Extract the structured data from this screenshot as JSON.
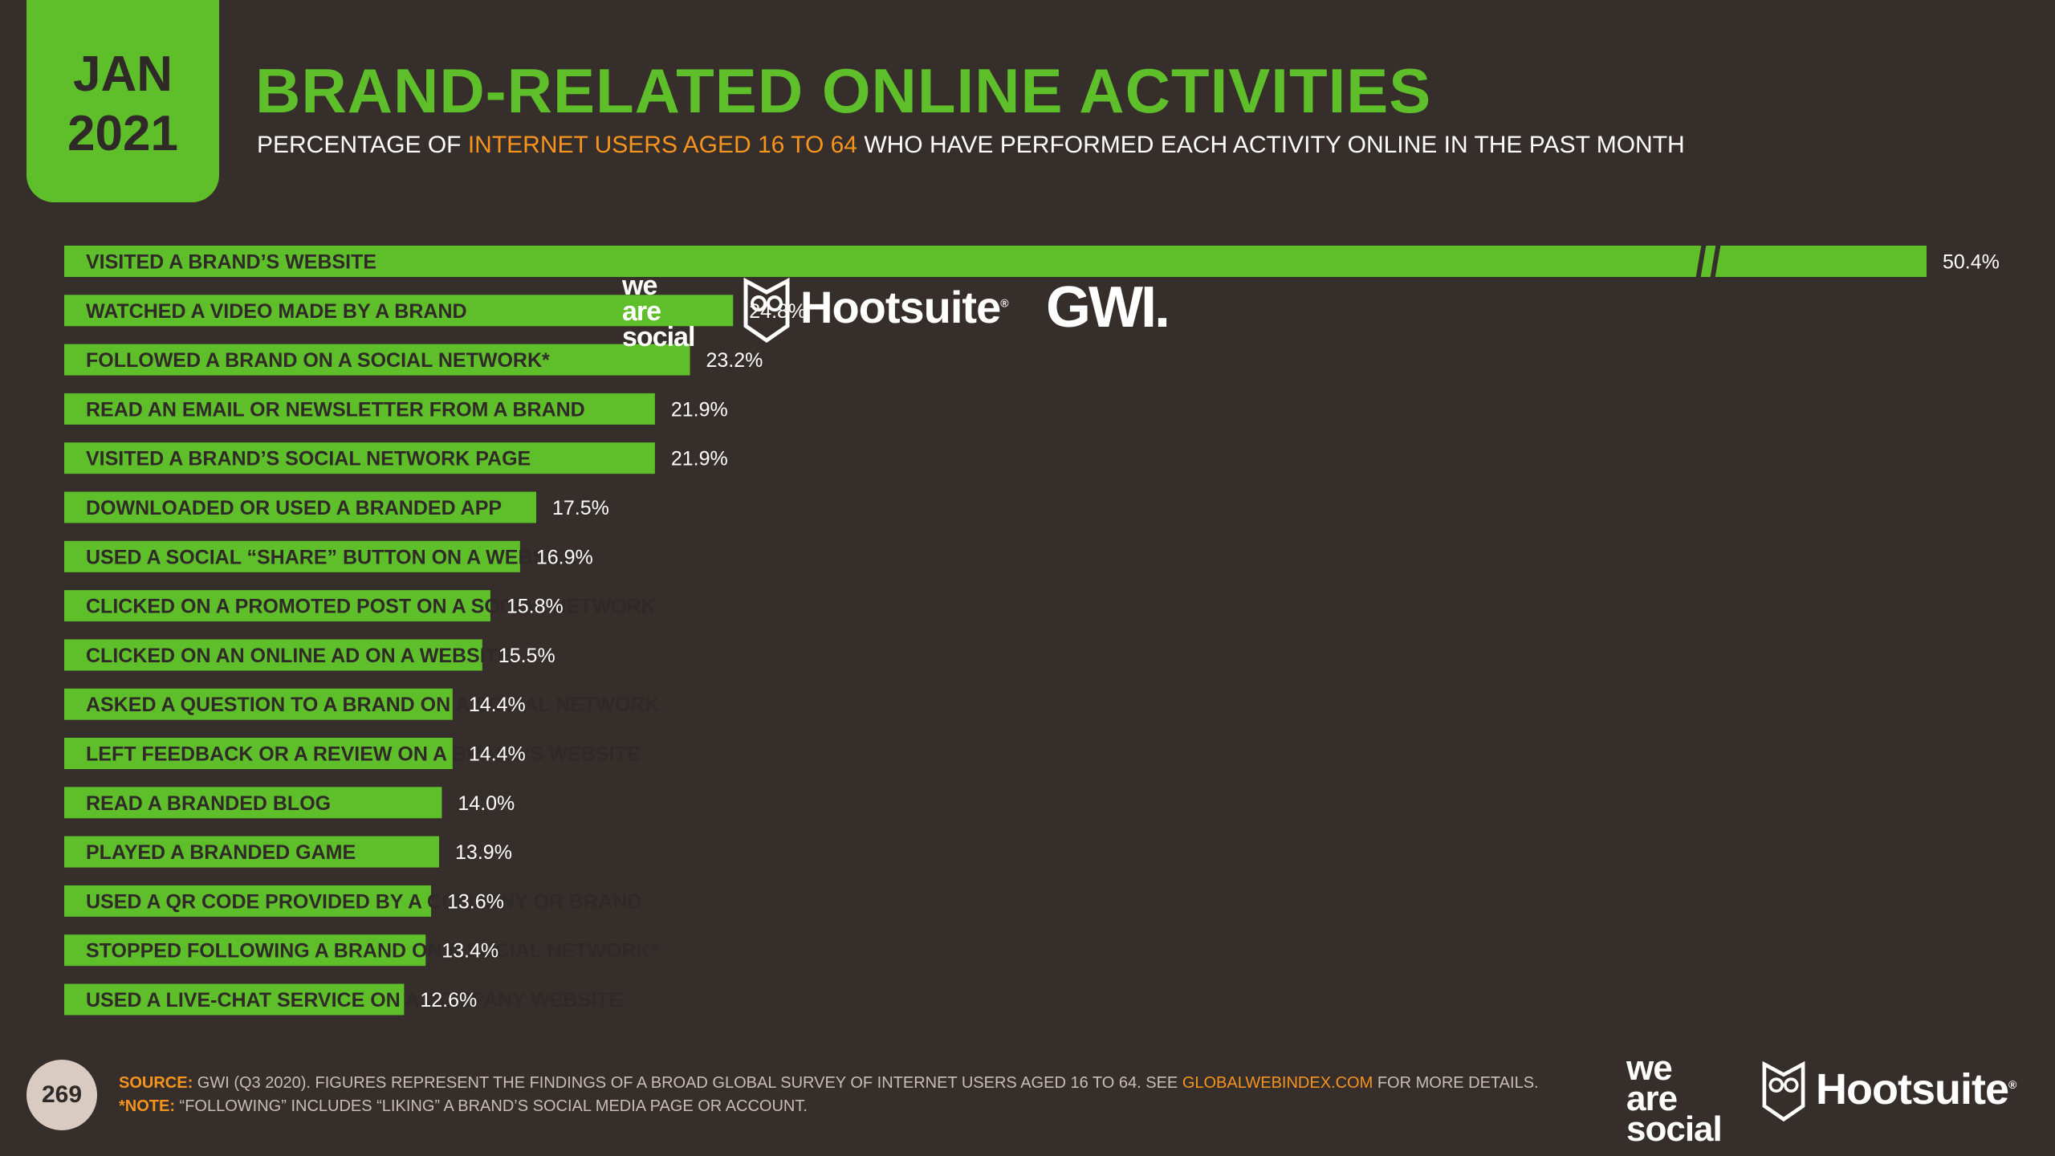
{
  "header": {
    "month": "JAN",
    "year": "2021",
    "title": "BRAND-RELATED ONLINE ACTIVITIES",
    "subtitle_pre": "PERCENTAGE OF ",
    "subtitle_highlight": "INTERNET USERS AGED 16 TO 64",
    "subtitle_post": " WHO HAVE PERFORMED EACH ACTIVITY ONLINE IN THE PAST MONTH"
  },
  "logos": {
    "was_line1": "we",
    "was_line2": "are",
    "was_line3": "social",
    "hootsuite": "Hootsuite",
    "registered": "®",
    "gwi": "GWI."
  },
  "colors": {
    "background": "#352e2b",
    "accent": "#5fbf2a",
    "highlight": "#f7941d"
  },
  "chart_data": {
    "type": "bar",
    "orientation": "horizontal",
    "axis_break_on_first_bar": true,
    "categories": [
      "VISITED A BRAND’S WEBSITE",
      "WATCHED A VIDEO MADE BY A BRAND",
      "FOLLOWED A BRAND ON A SOCIAL NETWORK*",
      "READ AN EMAIL OR NEWSLETTER FROM A BRAND",
      "VISITED A BRAND’S SOCIAL NETWORK PAGE",
      "DOWNLOADED OR USED A BRANDED APP",
      "USED A SOCIAL “SHARE” BUTTON ON A WEBSITE",
      "CLICKED ON A PROMOTED POST ON A SOCIAL NETWORK",
      "CLICKED ON AN ONLINE AD ON A WEBSITE",
      "ASKED A QUESTION TO A BRAND ON A SOCIAL NETWORK",
      "LEFT FEEDBACK OR A REVIEW ON A BRAND’S WEBSITE",
      "READ A BRANDED BLOG",
      "PLAYED A BRANDED GAME",
      "USED A QR CODE PROVIDED BY A COMPANY OR BRAND",
      "STOPPED FOLLOWING A BRAND ON A SOCIAL NETWORK*",
      "USED A LIVE-CHAT SERVICE ON A COMPANY WEBSITE"
    ],
    "values": [
      50.4,
      24.8,
      23.2,
      21.9,
      21.9,
      17.5,
      16.9,
      15.8,
      15.5,
      14.4,
      14.4,
      14.0,
      13.9,
      13.6,
      13.4,
      12.6
    ],
    "value_labels": [
      "50.4%",
      "24.8%",
      "23.2%",
      "21.9%",
      "21.9%",
      "17.5%",
      "16.9%",
      "15.8%",
      "15.5%",
      "14.4%",
      "14.4%",
      "14.0%",
      "13.9%",
      "13.6%",
      "13.4%",
      "12.6%"
    ]
  },
  "footer": {
    "page_number": "269",
    "source_tag": "SOURCE:",
    "source_text_1": " GWI (Q3 2020). FIGURES REPRESENT THE FINDINGS OF A BROAD GLOBAL SURVEY OF INTERNET USERS AGED 16 TO 64. SEE ",
    "source_link": "GLOBALWEBINDEX.COM",
    "source_text_2": " FOR MORE DETAILS.",
    "note_tag": "*NOTE:",
    "note_text": " “FOLLOWING” INCLUDES “LIKING” A BRAND’S SOCIAL MEDIA PAGE OR ACCOUNT."
  }
}
